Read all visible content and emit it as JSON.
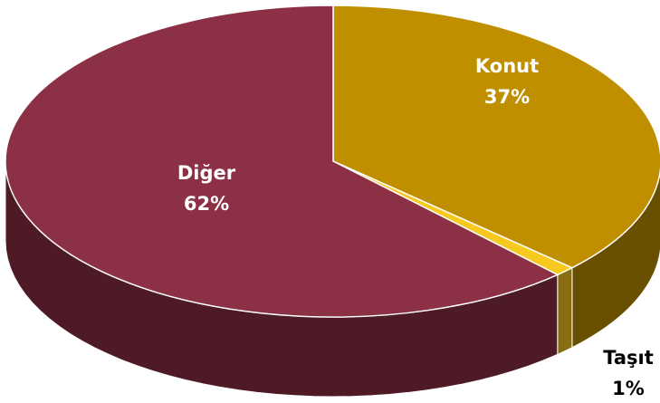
{
  "chart_data": {
    "type": "pie",
    "categories": [
      "Konut",
      "Taşıt",
      "Diğer"
    ],
    "values": [
      37,
      1,
      62
    ],
    "value_labels": [
      "37%",
      "1%",
      "62%"
    ],
    "colors": [
      "#bf8f00",
      "#f7c81e",
      "#8c3045"
    ]
  }
}
